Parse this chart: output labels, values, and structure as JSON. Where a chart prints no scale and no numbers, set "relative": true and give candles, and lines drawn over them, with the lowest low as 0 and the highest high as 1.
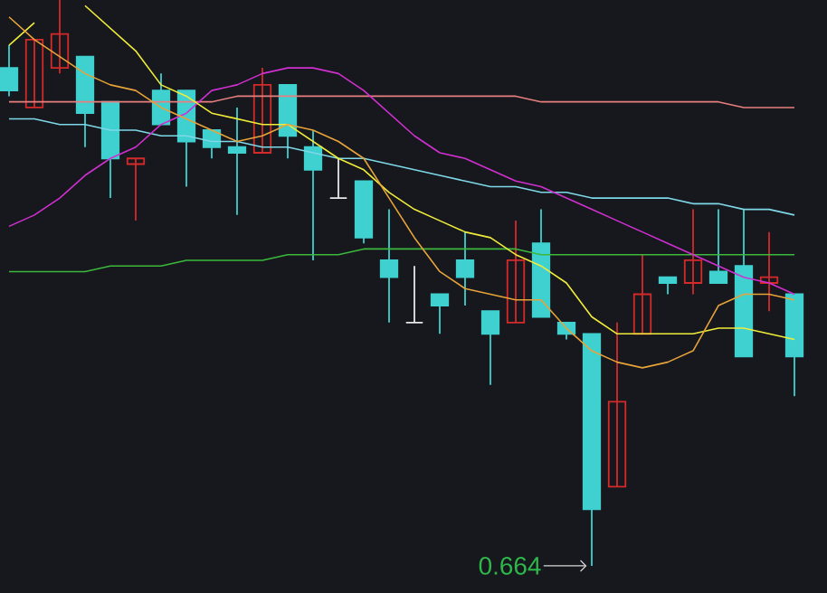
{
  "chart_data": {
    "type": "candlestick",
    "relative": true,
    "categories": [
      null,
      null,
      null,
      null,
      null,
      null,
      null,
      null,
      null,
      null,
      null,
      null,
      null,
      null,
      null,
      null,
      null,
      null,
      null,
      null,
      null,
      null,
      null,
      null,
      null,
      null,
      null,
      null,
      null,
      null,
      null,
      null
    ],
    "ohlc": [
      [
        0.88,
        0.92,
        0.83,
        0.84
      ],
      [
        0.81,
        0.93,
        0.81,
        0.93
      ],
      [
        0.88,
        1,
        0.87,
        0.94
      ],
      [
        0.9,
        0.9,
        0.74,
        0.8
      ],
      [
        0.82,
        0.82,
        0.65,
        0.72
      ],
      [
        0.71,
        0.72,
        0.61,
        0.72
      ],
      [
        0.84,
        0.87,
        0.78,
        0.78
      ],
      [
        0.84,
        0.84,
        0.67,
        0.75
      ],
      [
        0.77,
        0.77,
        0.72,
        0.74
      ],
      [
        0.74,
        0.81,
        0.62,
        0.73
      ],
      [
        0.73,
        0.88,
        0.73,
        0.85
      ],
      [
        0.85,
        0.85,
        0.72,
        0.76
      ],
      [
        0.74,
        0.77,
        0.54,
        0.7
      ],
      [
        0.65,
        0.72,
        0.65,
        0.65
      ],
      [
        0.68,
        0.68,
        0.57,
        0.58
      ],
      [
        0.54,
        0.63,
        0.43,
        0.51
      ],
      [
        0.43,
        0.53,
        0.43,
        0.43
      ],
      [
        0.48,
        0.48,
        0.41,
        0.46
      ],
      [
        0.54,
        0.59,
        0.46,
        0.51
      ],
      [
        0.45,
        0.45,
        0.32,
        0.41
      ],
      [
        0.43,
        0.61,
        0.43,
        0.54
      ],
      [
        0.57,
        0.63,
        0.44,
        0.44
      ],
      [
        0.43,
        0.43,
        0.4,
        0.41
      ],
      [
        0.41,
        0.41,
        0,
        0.1
      ],
      [
        0.14,
        0.43,
        0.14,
        0.29
      ],
      [
        0.41,
        0.55,
        0.41,
        0.48
      ],
      [
        0.51,
        0.51,
        0.48,
        0.5
      ],
      [
        0.5,
        0.63,
        0.48,
        0.54
      ],
      [
        0.52,
        0.63,
        0.5,
        0.5
      ],
      [
        0.53,
        0.63,
        0.37,
        0.37
      ],
      [
        0.5,
        0.59,
        0.45,
        0.51
      ],
      [
        0.48,
        0.48,
        0.3,
        0.37
      ]
    ],
    "colors": [
      "#3fd0d0",
      "#d42a2a",
      "#d42a2a",
      "#3fd0d0",
      "#3fd0d0",
      "#d42a2a",
      "#3fd0d0",
      "#3fd0d0",
      "#3fd0d0",
      "#3fd0d0",
      "#d42a2a",
      "#3fd0d0",
      "#3fd0d0",
      "#e8e8e8",
      "#3fd0d0",
      "#3fd0d0",
      "#e8e8e8",
      "#3fd0d0",
      "#3fd0d0",
      "#3fd0d0",
      "#d42a2a",
      "#3fd0d0",
      "#3fd0d0",
      "#3fd0d0",
      "#d42a2a",
      "#d42a2a",
      "#3fd0d0",
      "#d42a2a",
      "#3fd0d0",
      "#3fd0d0",
      "#d42a2a",
      "#3fd0d0"
    ],
    "series": [
      {
        "type": "line",
        "color": "#e87f7f",
        "values": [
          0.82,
          0.82,
          0.82,
          0.82,
          0.82,
          0.82,
          0.82,
          0.82,
          0.82,
          0.83,
          0.83,
          0.83,
          0.83,
          0.83,
          0.83,
          0.83,
          0.83,
          0.83,
          0.83,
          0.83,
          0.83,
          0.82,
          0.82,
          0.82,
          0.82,
          0.82,
          0.82,
          0.82,
          0.82,
          0.81,
          0.81,
          0.81
        ]
      },
      {
        "type": "line",
        "color": "#7fd8e8",
        "values": [
          0.79,
          0.79,
          0.78,
          0.78,
          0.77,
          0.77,
          0.76,
          0.76,
          0.75,
          0.75,
          0.74,
          0.74,
          0.73,
          0.72,
          0.72,
          0.71,
          0.7,
          0.69,
          0.68,
          0.67,
          0.67,
          0.66,
          0.66,
          0.65,
          0.65,
          0.65,
          0.65,
          0.64,
          0.64,
          0.63,
          0.63,
          0.62
        ]
      },
      {
        "type": "line",
        "color": "#3cb83c",
        "values": [
          0.52,
          0.52,
          0.52,
          0.52,
          0.53,
          0.53,
          0.53,
          0.54,
          0.54,
          0.54,
          0.54,
          0.55,
          0.55,
          0.55,
          0.56,
          0.56,
          0.56,
          0.56,
          0.56,
          0.56,
          0.56,
          0.55,
          0.55,
          0.55,
          0.55,
          0.55,
          0.55,
          0.55,
          0.55,
          0.55,
          0.55,
          0.55
        ]
      },
      {
        "type": "line",
        "color": "#d030d0",
        "values": [
          0.6,
          0.62,
          0.65,
          0.69,
          0.72,
          0.74,
          0.78,
          0.8,
          0.84,
          0.85,
          0.87,
          0.88,
          0.88,
          0.87,
          0.84,
          0.8,
          0.76,
          0.73,
          0.72,
          0.7,
          0.68,
          0.67,
          0.65,
          0.63,
          0.61,
          0.59,
          0.57,
          0.55,
          0.53,
          0.51,
          0.5,
          0.48
        ]
      },
      {
        "type": "line",
        "color": "#f0ec3a",
        "values": [
          0.92,
          0.96,
          null,
          0.99,
          0.95,
          0.91,
          0.85,
          0.83,
          0.8,
          0.79,
          0.78,
          0.78,
          0.75,
          0.72,
          0.7,
          0.66,
          0.63,
          0.61,
          0.59,
          0.58,
          0.55,
          0.53,
          0.5,
          0.44,
          0.41,
          0.41,
          0.41,
          0.41,
          0.42,
          0.42,
          0.41,
          0.4
        ]
      },
      {
        "type": "line",
        "color": "#e8a33a",
        "values": [
          0.97,
          0.93,
          0.9,
          0.87,
          0.85,
          0.84,
          0.81,
          0.79,
          0.77,
          0.75,
          0.76,
          0.78,
          0.77,
          0.75,
          0.72,
          0.65,
          0.58,
          0.52,
          0.49,
          0.48,
          0.47,
          0.47,
          0.42,
          0.38,
          0.36,
          0.35,
          0.36,
          0.38,
          0.46,
          0.48,
          0.48,
          0.47
        ]
      }
    ],
    "annotations": [
      "0.664"
    ]
  }
}
